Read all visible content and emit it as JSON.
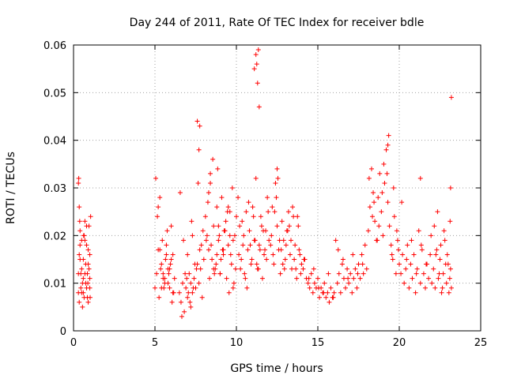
{
  "chart_data": {
    "type": "scatter",
    "title": "Day 244 of 2011, Rate Of TEC Index for receiver bdle",
    "xlabel": "GPS time / hours",
    "ylabel": "ROTI / TECUs",
    "xlim": [
      0,
      25
    ],
    "ylim": [
      0,
      0.06
    ],
    "xticks": [
      "0",
      "5",
      "10",
      "15",
      "20",
      "25"
    ],
    "yticks": [
      "0",
      "0.01",
      "0.02",
      "0.03",
      "0.04",
      "0.05",
      "0.06"
    ],
    "grid": true,
    "marker": "+",
    "color": "#ff0000",
    "series": [
      {
        "x": [
          0.3,
          0.35,
          0.4,
          0.45,
          0.5,
          0.55,
          0.6,
          0.65,
          0.7,
          0.75,
          0.8,
          0.85,
          0.9,
          0.95,
          1.0,
          1.05,
          0.3,
          0.35,
          0.5,
          0.7,
          0.85,
          1.0,
          0.4,
          0.6,
          0.9,
          0.3,
          0.45,
          0.65,
          0.8,
          0.95,
          0.35,
          0.55,
          0.75,
          1.0,
          0.4,
          0.7,
          0.9,
          0.5,
          0.6,
          0.8,
          0.32,
          0.38,
          0.62,
          0.88,
          1.02,
          5.0,
          5.1,
          5.2,
          5.3,
          5.4,
          5.5,
          5.6,
          5.7,
          5.8,
          5.9,
          6.0,
          6.1,
          6.2,
          5.05,
          5.25,
          5.45,
          5.65,
          5.85,
          6.05,
          5.15,
          5.35,
          5.55,
          5.75,
          5.95,
          6.15,
          5.2,
          5.5,
          5.8,
          6.1,
          5.3,
          5.6,
          5.9,
          5.4,
          5.7,
          6.0,
          6.5,
          6.6,
          6.7,
          6.8,
          6.9,
          7.0,
          7.1,
          7.2,
          7.3,
          7.4,
          7.5,
          7.6,
          7.7,
          7.8,
          7.9,
          8.0,
          6.55,
          6.75,
          6.95,
          7.15,
          7.35,
          7.55,
          7.75,
          7.95,
          6.65,
          6.85,
          7.05,
          7.25,
          7.45,
          7.65,
          7.85,
          7.0,
          7.2,
          7.3,
          7.6,
          8.1,
          8.2,
          8.3,
          8.4,
          8.5,
          8.6,
          8.7,
          8.8,
          8.9,
          9.0,
          9.1,
          9.2,
          9.3,
          9.4,
          9.5,
          9.6,
          9.7,
          9.8,
          9.9,
          10.0,
          8.15,
          8.35,
          8.55,
          8.75,
          8.95,
          9.15,
          9.35,
          9.55,
          9.75,
          9.95,
          8.25,
          8.45,
          8.65,
          8.85,
          9.05,
          9.25,
          9.45,
          9.65,
          9.85,
          8.3,
          8.6,
          8.9,
          9.2,
          9.5,
          9.8,
          8.4,
          8.8,
          9.0,
          9.6,
          10.1,
          10.2,
          10.3,
          10.4,
          10.5,
          10.6,
          10.7,
          10.8,
          10.9,
          11.0,
          11.1,
          11.2,
          11.3,
          11.4,
          11.5,
          11.6,
          11.7,
          11.8,
          11.9,
          12.0,
          10.15,
          10.35,
          10.55,
          10.75,
          10.95,
          11.15,
          11.35,
          11.55,
          11.75,
          11.95,
          10.25,
          10.45,
          10.65,
          10.85,
          11.05,
          11.25,
          11.45,
          11.65,
          11.85,
          12.1,
          12.2,
          12.3,
          12.4,
          12.5,
          12.6,
          12.7,
          12.8,
          12.9,
          13.0,
          13.1,
          13.2,
          13.3,
          13.4,
          13.5,
          13.6,
          13.7,
          13.8,
          13.9,
          14.0,
          12.15,
          12.35,
          12.55,
          12.75,
          12.95,
          13.15,
          13.35,
          13.55,
          13.75,
          13.95,
          12.25,
          12.45,
          12.65,
          12.85,
          13.05,
          13.25,
          13.45,
          13.65,
          13.85,
          14.1,
          14.2,
          14.3,
          14.4,
          14.5,
          14.6,
          14.7,
          14.8,
          14.9,
          15.0,
          15.1,
          15.2,
          15.3,
          15.4,
          15.5,
          15.6,
          15.7,
          15.8,
          15.9,
          16.0,
          14.15,
          14.45,
          14.75,
          15.05,
          15.35,
          15.65,
          15.95,
          16.1,
          16.2,
          16.3,
          16.4,
          16.5,
          16.6,
          16.7,
          16.8,
          16.9,
          17.0,
          17.1,
          17.2,
          17.3,
          17.4,
          17.5,
          17.6,
          17.7,
          17.8,
          17.9,
          18.0,
          16.25,
          16.55,
          16.85,
          17.15,
          17.45,
          17.75,
          18.1,
          18.2,
          18.3,
          18.4,
          18.5,
          18.6,
          18.7,
          18.8,
          18.9,
          19.0,
          19.1,
          19.2,
          19.3,
          19.4,
          19.5,
          19.6,
          19.7,
          19.8,
          19.9,
          20.0,
          18.15,
          18.45,
          18.75,
          19.05,
          19.35,
          19.65,
          19.95,
          18.35,
          18.65,
          18.95,
          19.25,
          19.55,
          19.85,
          20.1,
          20.2,
          20.3,
          20.4,
          20.5,
          20.6,
          20.7,
          20.8,
          20.9,
          21.0,
          21.1,
          21.2,
          21.3,
          21.4,
          21.5,
          21.6,
          21.7,
          21.8,
          21.9,
          22.0,
          20.15,
          20.45,
          20.75,
          21.05,
          21.35,
          21.65,
          21.95,
          22.1,
          22.2,
          22.3,
          22.4,
          22.5,
          22.6,
          22.7,
          22.8,
          22.9,
          23.0,
          23.1,
          23.2,
          22.15,
          22.35,
          22.55,
          22.75,
          22.95,
          23.15,
          22.25,
          22.45,
          22.65,
          22.85,
          23.05,
          23.12,
          11.1,
          11.2,
          11.3,
          11.25,
          11.4,
          11.35,
          7.7,
          7.75,
          12.5,
          19.3,
          21.3,
          23.2,
          23.15
        ],
        "y": [
          0.031,
          0.026,
          0.018,
          0.012,
          0.008,
          0.01,
          0.015,
          0.02,
          0.023,
          0.014,
          0.009,
          0.012,
          0.017,
          0.022,
          0.011,
          0.024,
          0.008,
          0.006,
          0.013,
          0.019,
          0.007,
          0.016,
          0.021,
          0.011,
          0.014,
          0.012,
          0.009,
          0.007,
          0.018,
          0.013,
          0.016,
          0.005,
          0.01,
          0.009,
          0.015,
          0.012,
          0.006,
          0.019,
          0.008,
          0.022,
          0.032,
          0.023,
          0.02,
          0.01,
          0.007,
          0.009,
          0.012,
          0.026,
          0.017,
          0.014,
          0.011,
          0.01,
          0.016,
          0.013,
          0.009,
          0.022,
          0.008,
          0.011,
          0.032,
          0.007,
          0.019,
          0.015,
          0.012,
          0.006,
          0.024,
          0.013,
          0.009,
          0.021,
          0.014,
          0.008,
          0.017,
          0.012,
          0.01,
          0.016,
          0.028,
          0.011,
          0.013,
          0.009,
          0.018,
          0.015,
          0.008,
          0.006,
          0.01,
          0.004,
          0.009,
          0.007,
          0.012,
          0.005,
          0.008,
          0.011,
          0.009,
          0.014,
          0.01,
          0.013,
          0.007,
          0.015,
          0.029,
          0.019,
          0.011,
          0.006,
          0.009,
          0.013,
          0.017,
          0.021,
          0.003,
          0.012,
          0.008,
          0.023,
          0.014,
          0.031,
          0.018,
          0.016,
          0.01,
          0.02,
          0.044,
          0.024,
          0.02,
          0.017,
          0.033,
          0.015,
          0.022,
          0.013,
          0.026,
          0.019,
          0.012,
          0.028,
          0.016,
          0.021,
          0.011,
          0.018,
          0.025,
          0.014,
          0.009,
          0.02,
          0.024,
          0.019,
          0.011,
          0.036,
          0.014,
          0.02,
          0.017,
          0.023,
          0.008,
          0.03,
          0.013,
          0.027,
          0.018,
          0.012,
          0.034,
          0.015,
          0.021,
          0.025,
          0.016,
          0.01,
          0.029,
          0.013,
          0.022,
          0.017,
          0.026,
          0.019,
          0.031,
          0.016,
          0.012,
          0.02,
          0.028,
          0.022,
          0.015,
          0.018,
          0.012,
          0.025,
          0.017,
          0.021,
          0.014,
          0.026,
          0.019,
          0.032,
          0.013,
          0.018,
          0.024,
          0.011,
          0.016,
          0.021,
          0.028,
          0.019,
          0.016,
          0.023,
          0.011,
          0.027,
          0.015,
          0.019,
          0.013,
          0.022,
          0.017,
          0.025,
          0.013,
          0.02,
          0.009,
          0.018,
          0.024,
          0.014,
          0.017,
          0.021,
          0.015,
          0.018,
          0.026,
          0.014,
          0.031,
          0.022,
          0.017,
          0.012,
          0.023,
          0.019,
          0.015,
          0.021,
          0.025,
          0.016,
          0.013,
          0.024,
          0.018,
          0.011,
          0.022,
          0.016,
          0.014,
          0.02,
          0.025,
          0.032,
          0.017,
          0.013,
          0.021,
          0.019,
          0.015,
          0.024,
          0.012,
          0.016,
          0.028,
          0.019,
          0.014,
          0.018,
          0.022,
          0.026,
          0.013,
          0.017,
          0.013,
          0.015,
          0.011,
          0.01,
          0.009,
          0.012,
          0.008,
          0.01,
          0.009,
          0.011,
          0.007,
          0.009,
          0.008,
          0.01,
          0.007,
          0.008,
          0.006,
          0.009,
          0.007,
          0.008,
          0.015,
          0.011,
          0.013,
          0.009,
          0.008,
          0.012,
          0.007,
          0.019,
          0.01,
          0.012,
          0.008,
          0.014,
          0.011,
          0.009,
          0.013,
          0.01,
          0.012,
          0.008,
          0.011,
          0.013,
          0.009,
          0.014,
          0.011,
          0.016,
          0.012,
          0.018,
          0.013,
          0.017,
          0.015,
          0.011,
          0.016,
          0.012,
          0.014,
          0.021,
          0.026,
          0.034,
          0.029,
          0.023,
          0.019,
          0.028,
          0.033,
          0.025,
          0.02,
          0.031,
          0.038,
          0.027,
          0.022,
          0.018,
          0.015,
          0.024,
          0.012,
          0.019,
          0.014,
          0.032,
          0.027,
          0.022,
          0.035,
          0.041,
          0.03,
          0.017,
          0.024,
          0.019,
          0.029,
          0.033,
          0.016,
          0.021,
          0.012,
          0.016,
          0.01,
          0.013,
          0.018,
          0.009,
          0.014,
          0.011,
          0.016,
          0.008,
          0.013,
          0.021,
          0.01,
          0.017,
          0.012,
          0.009,
          0.014,
          0.011,
          0.016,
          0.01,
          0.027,
          0.015,
          0.019,
          0.012,
          0.018,
          0.014,
          0.02,
          0.013,
          0.009,
          0.017,
          0.011,
          0.015,
          0.008,
          0.012,
          0.019,
          0.01,
          0.014,
          0.011,
          0.009,
          0.022,
          0.025,
          0.018,
          0.021,
          0.016,
          0.013,
          0.016,
          0.012,
          0.009,
          0.014,
          0.008,
          0.023,
          0.055,
          0.058,
          0.052,
          0.056,
          0.047,
          0.059,
          0.038,
          0.043,
          0.034,
          0.039,
          0.032,
          0.049,
          0.03
        ]
      }
    ]
  }
}
